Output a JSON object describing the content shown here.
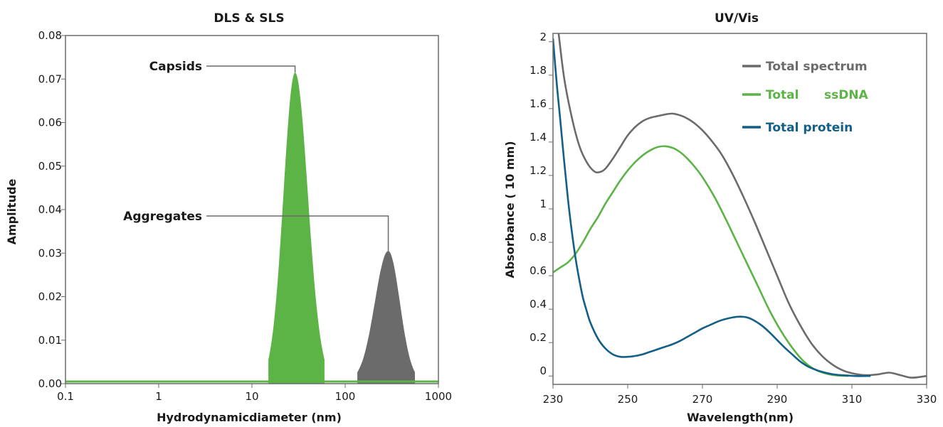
{
  "chart_data": [
    {
      "type": "area",
      "title": "DLS & SLS",
      "xlabel": "Hydrodynamicdiameter (nm)",
      "ylabel": "Amplitude",
      "xscale": "log",
      "xlim": [
        0.1,
        1000
      ],
      "ylim": [
        0,
        0.08
      ],
      "x_ticks": [
        "0.1",
        "1",
        "10",
        "100",
        "1000"
      ],
      "y_ticks": [
        "0.00",
        "0.01",
        "0.02",
        "0.03",
        "0.04",
        "0.05",
        "0.06",
        "0.07",
        "0.08"
      ],
      "grid": false,
      "series": [
        {
          "name": "Capsids",
          "peak_x": 29,
          "peak_y": 0.0715,
          "x_range": [
            15,
            60
          ],
          "baseline": 0.0005,
          "color": "#5cb346"
        },
        {
          "name": "Aggregates",
          "peak_x": 290,
          "peak_y": 0.0305,
          "x_range": [
            135,
            560
          ],
          "baseline": 0.0005,
          "color": "#6b6b6b"
        }
      ],
      "annotations": [
        {
          "text": "Capsids",
          "target_x": 29,
          "target_y": 0.0715
        },
        {
          "text": "Aggregates",
          "target_x": 290,
          "target_y": 0.0305
        }
      ]
    },
    {
      "type": "line",
      "title": "UV/Vis",
      "xlabel": "Wavelength(nm)",
      "ylabel": "Absorbance ( 10 mm)",
      "xlim": [
        230,
        330
      ],
      "ylim": [
        -0.05,
        2.05
      ],
      "x_ticks": [
        "230",
        "250",
        "270",
        "290",
        "310",
        "330"
      ],
      "y_ticks": [
        "0",
        "0.2",
        "0.4",
        "0.6",
        "0.8",
        "1",
        "1.2",
        "1.4",
        "1.6",
        "1.8",
        "2"
      ],
      "grid": false,
      "legend_position": "top-right",
      "series": [
        {
          "name": "Total spectrum",
          "color": "#6b6b6b",
          "x": [
            231.5,
            233,
            235,
            237,
            239,
            241,
            242.5,
            244,
            246,
            248,
            250,
            252,
            254,
            256,
            258,
            260,
            262,
            264,
            266,
            268,
            270,
            272,
            275,
            278,
            281,
            284,
            287,
            290,
            293,
            296,
            299,
            302,
            305,
            308,
            311,
            314,
            317,
            320,
            323,
            326,
            330
          ],
          "y": [
            2.05,
            1.78,
            1.55,
            1.38,
            1.28,
            1.225,
            1.22,
            1.24,
            1.3,
            1.37,
            1.44,
            1.49,
            1.525,
            1.545,
            1.555,
            1.565,
            1.57,
            1.56,
            1.54,
            1.51,
            1.47,
            1.42,
            1.33,
            1.21,
            1.07,
            0.92,
            0.76,
            0.6,
            0.44,
            0.31,
            0.2,
            0.12,
            0.065,
            0.03,
            0.012,
            0.005,
            0.01,
            0.02,
            0.005,
            -0.01,
            0.0
          ]
        },
        {
          "name": "Total      ssDNA",
          "color": "#5cb346",
          "x": [
            230,
            232,
            234,
            236,
            238,
            240,
            242,
            244,
            246,
            248,
            250,
            252,
            254,
            256,
            258,
            260,
            262,
            264,
            266,
            268,
            270,
            273,
            276,
            279,
            282,
            285,
            288,
            291,
            294,
            297,
            300,
            303,
            306,
            309
          ],
          "y": [
            0.62,
            0.65,
            0.68,
            0.73,
            0.8,
            0.88,
            0.95,
            1.03,
            1.1,
            1.17,
            1.23,
            1.28,
            1.32,
            1.35,
            1.37,
            1.375,
            1.365,
            1.34,
            1.3,
            1.25,
            1.19,
            1.08,
            0.95,
            0.81,
            0.67,
            0.53,
            0.39,
            0.27,
            0.17,
            0.09,
            0.04,
            0.015,
            0.003,
            0.0
          ]
        },
        {
          "name": "Total protein",
          "color": "#125f87",
          "x": [
            230,
            231,
            232,
            233,
            234,
            235,
            236,
            237,
            238,
            239,
            240,
            242,
            244,
            246,
            248,
            250,
            252,
            254,
            256,
            258,
            260,
            262,
            264,
            266,
            268,
            270,
            272,
            274,
            276,
            278,
            280,
            282,
            284,
            286,
            288,
            290,
            292,
            294,
            296,
            298,
            300,
            302,
            305,
            308,
            311,
            315
          ],
          "y": [
            2.02,
            1.75,
            1.52,
            1.28,
            1.06,
            0.87,
            0.71,
            0.58,
            0.47,
            0.39,
            0.32,
            0.225,
            0.165,
            0.13,
            0.115,
            0.115,
            0.12,
            0.13,
            0.145,
            0.16,
            0.175,
            0.19,
            0.21,
            0.235,
            0.26,
            0.285,
            0.305,
            0.325,
            0.34,
            0.35,
            0.355,
            0.35,
            0.33,
            0.3,
            0.26,
            0.215,
            0.17,
            0.13,
            0.09,
            0.06,
            0.04,
            0.025,
            0.01,
            0.004,
            0.0,
            0.0
          ]
        }
      ]
    }
  ]
}
